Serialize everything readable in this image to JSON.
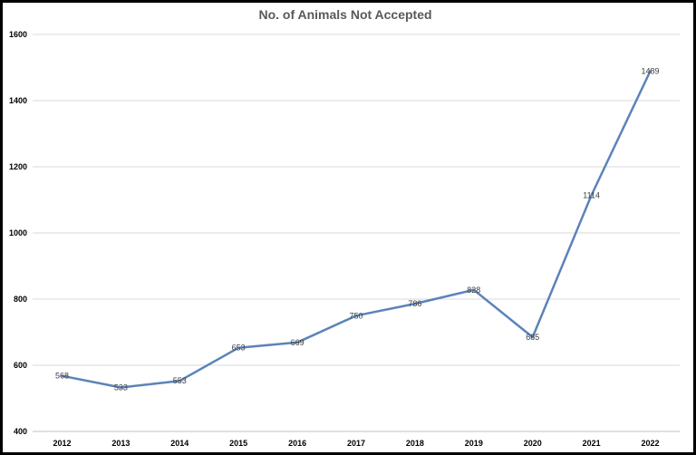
{
  "chart_data": {
    "type": "line",
    "title": "No. of Animals Not Accepted",
    "xlabel": "",
    "ylabel": "",
    "categories": [
      "2012",
      "2013",
      "2014",
      "2015",
      "2016",
      "2017",
      "2018",
      "2019",
      "2020",
      "2021",
      "2022"
    ],
    "series": [
      {
        "values": [
          568,
          533,
          553,
          653,
          669,
          750,
          786,
          828,
          685,
          1114,
          1489
        ],
        "color": "#5b83b9"
      }
    ],
    "ylim": [
      400,
      1600
    ],
    "yticks": [
      "400",
      "600",
      "800",
      "1000",
      "1200",
      "1400",
      "1600"
    ],
    "data_labels": [
      "568",
      "533",
      "553",
      "653",
      "669",
      "750",
      "786",
      "828",
      "685",
      "1114",
      "1489"
    ],
    "grid": true,
    "legend": "none"
  }
}
